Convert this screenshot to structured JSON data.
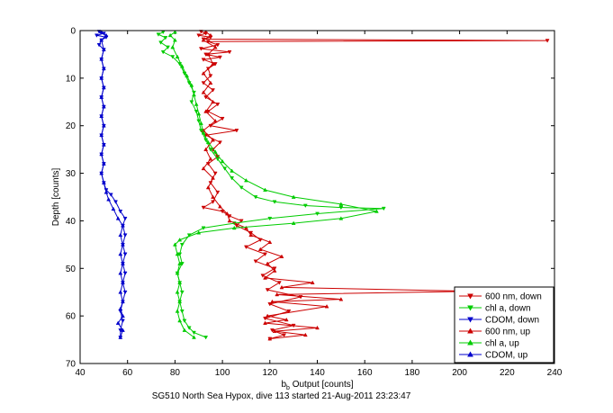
{
  "chart_data": {
    "type": "line",
    "title": "",
    "caption": "SG510 North Sea Hypox, dive 113 started 21-Aug-2011 23:23:47",
    "xlabel_base": "b",
    "xlabel_sub": "b",
    "xlabel_rest": " Output [counts]",
    "ylabel": "Depth [counts]",
    "xlim": [
      40,
      240
    ],
    "ylim": [
      0,
      70
    ],
    "y_reversed": true,
    "grid": false,
    "legend_position": "bottom-right",
    "x_ticks": [
      40,
      60,
      80,
      100,
      120,
      140,
      160,
      180,
      200,
      220,
      240
    ],
    "y_ticks": [
      0,
      10,
      20,
      30,
      40,
      50,
      60,
      70
    ],
    "x_tick_labels": [
      "40",
      "60",
      "80",
      "100",
      "120",
      "140",
      "160",
      "180",
      "200",
      "220",
      "240"
    ],
    "y_tick_labels": [
      "0",
      "10",
      "20",
      "30",
      "40",
      "50",
      "60",
      "70"
    ],
    "series": [
      {
        "name": "600 nm, down",
        "color": "#cc0000",
        "marker": "triangle-down",
        "points": [
          [
            91,
            0.2
          ],
          [
            93,
            0.6
          ],
          [
            90,
            1.0
          ],
          [
            95,
            1.4
          ],
          [
            92,
            1.8
          ],
          [
            237,
            2.1
          ],
          [
            94,
            2.3
          ],
          [
            98,
            3.0
          ],
          [
            91,
            3.8
          ],
          [
            103,
            4.5
          ],
          [
            93,
            5.0
          ],
          [
            99,
            5.6
          ],
          [
            92,
            6.1
          ],
          [
            97,
            7.0
          ],
          [
            94,
            8.0
          ],
          [
            95,
            9.5
          ],
          [
            92,
            11.0
          ],
          [
            96,
            12.5
          ],
          [
            93,
            14.0
          ],
          [
            98,
            15.5
          ],
          [
            94,
            17.0
          ],
          [
            100,
            18.5
          ],
          [
            95,
            20.0
          ],
          [
            106,
            21.0
          ],
          [
            93,
            22.0
          ],
          [
            99,
            23.5
          ],
          [
            96,
            25.0
          ],
          [
            98,
            26.5
          ],
          [
            94,
            28.0
          ],
          [
            97,
            30.0
          ],
          [
            95,
            32.0
          ],
          [
            98,
            34.0
          ],
          [
            96,
            36.0
          ],
          [
            92,
            37.2
          ],
          [
            100,
            38.0
          ],
          [
            103,
            39.0
          ],
          [
            108,
            40.0
          ],
          [
            106,
            41.0
          ],
          [
            112,
            42.5
          ],
          [
            116,
            44.0
          ],
          [
            110,
            45.5
          ],
          [
            118,
            47.0
          ],
          [
            114,
            48.5
          ],
          [
            122,
            50.0
          ],
          [
            117,
            51.5
          ],
          [
            124,
            53.0
          ],
          [
            119,
            54.5
          ],
          [
            133,
            56.0
          ],
          [
            120,
            57.5
          ],
          [
            128,
            59.0
          ],
          [
            118,
            60.5
          ],
          [
            130,
            62.0
          ],
          [
            121,
            63.0
          ],
          [
            126,
            64.0
          ],
          [
            120,
            64.8
          ]
        ]
      },
      {
        "name": "chl a, down",
        "color": "#00cc00",
        "marker": "triangle-down",
        "points": [
          [
            75,
            0.3
          ],
          [
            73,
            0.8
          ],
          [
            76,
            1.5
          ],
          [
            74,
            2.5
          ],
          [
            77,
            3.5
          ],
          [
            75,
            4.5
          ],
          [
            79,
            5.5
          ],
          [
            82,
            7.0
          ],
          [
            84,
            9.0
          ],
          [
            86,
            11.0
          ],
          [
            88,
            13.0
          ],
          [
            87,
            15.0
          ],
          [
            89,
            17.0
          ],
          [
            90,
            19.0
          ],
          [
            91,
            21.0
          ],
          [
            93,
            23.0
          ],
          [
            95,
            25.0
          ],
          [
            98,
            27.0
          ],
          [
            101,
            29.0
          ],
          [
            104,
            31.0
          ],
          [
            108,
            33.0
          ],
          [
            114,
            35.0
          ],
          [
            122,
            36.0
          ],
          [
            135,
            36.8
          ],
          [
            150,
            37.2
          ],
          [
            168,
            37.4
          ],
          [
            140,
            38.5
          ],
          [
            120,
            39.5
          ],
          [
            105,
            40.5
          ],
          [
            92,
            41.5
          ],
          [
            86,
            43.0
          ],
          [
            83,
            45.0
          ],
          [
            82,
            47.0
          ],
          [
            83,
            49.0
          ],
          [
            81,
            51.0
          ],
          [
            82,
            53.0
          ],
          [
            83,
            55.0
          ],
          [
            82,
            57.0
          ],
          [
            83,
            59.0
          ],
          [
            84,
            61.0
          ],
          [
            86,
            62.5
          ],
          [
            88,
            63.5
          ],
          [
            93,
            64.5
          ]
        ]
      },
      {
        "name": "CDOM, down",
        "color": "#0000cc",
        "marker": "triangle-down",
        "points": [
          [
            48,
            0.2
          ],
          [
            50,
            0.6
          ],
          [
            47,
            1.0
          ],
          [
            51,
            1.4
          ],
          [
            49,
            2.0
          ],
          [
            48,
            3.0
          ],
          [
            50,
            4.0
          ],
          [
            49,
            6.0
          ],
          [
            50,
            8.0
          ],
          [
            49,
            10.0
          ],
          [
            50,
            12.0
          ],
          [
            49,
            14.0
          ],
          [
            50,
            16.0
          ],
          [
            49,
            18.0
          ],
          [
            50,
            20.0
          ],
          [
            49,
            22.0
          ],
          [
            50,
            24.0
          ],
          [
            49,
            26.0
          ],
          [
            50,
            28.0
          ],
          [
            49,
            30.0
          ],
          [
            50,
            32.0
          ],
          [
            51,
            33.5
          ],
          [
            53,
            34.5
          ],
          [
            55,
            36.0
          ],
          [
            57,
            38.0
          ],
          [
            59,
            39.5
          ],
          [
            58,
            41.0
          ],
          [
            59,
            43.0
          ],
          [
            58,
            45.0
          ],
          [
            59,
            47.0
          ],
          [
            58,
            49.0
          ],
          [
            59,
            51.0
          ],
          [
            58,
            53.0
          ],
          [
            59,
            55.0
          ],
          [
            58,
            57.0
          ],
          [
            57,
            59.0
          ],
          [
            58,
            61.0
          ],
          [
            57,
            63.0
          ],
          [
            57,
            64.5
          ]
        ]
      },
      {
        "name": "600 nm, up",
        "color": "#cc0000",
        "marker": "triangle-up",
        "points": [
          [
            120,
            64.8
          ],
          [
            135,
            64.0
          ],
          [
            122,
            63.2
          ],
          [
            140,
            62.5
          ],
          [
            118,
            61.5
          ],
          [
            127,
            60.8
          ],
          [
            119,
            60.0
          ],
          [
            144,
            58.0
          ],
          [
            121,
            57.0
          ],
          [
            150,
            56.5
          ],
          [
            123,
            55.5
          ],
          [
            205,
            54.8
          ],
          [
            125,
            54.0
          ],
          [
            138,
            53.0
          ],
          [
            118,
            52.0
          ],
          [
            122,
            50.5
          ],
          [
            119,
            49.0
          ],
          [
            125,
            47.5
          ],
          [
            116,
            46.0
          ],
          [
            120,
            44.5
          ],
          [
            112,
            43.0
          ],
          [
            110,
            41.5
          ],
          [
            103,
            40.0
          ],
          [
            102,
            38.5
          ],
          [
            99,
            37.0
          ],
          [
            96,
            35.0
          ],
          [
            94,
            33.0
          ],
          [
            96,
            31.0
          ],
          [
            92,
            29.0
          ],
          [
            95,
            27.0
          ],
          [
            93,
            25.0
          ],
          [
            96,
            23.0
          ],
          [
            92,
            21.0
          ],
          [
            97,
            19.0
          ],
          [
            93,
            17.0
          ],
          [
            96,
            15.0
          ],
          [
            92,
            13.0
          ],
          [
            95,
            11.0
          ],
          [
            92,
            9.0
          ],
          [
            96,
            7.0
          ],
          [
            94,
            5.0
          ],
          [
            97,
            3.5
          ],
          [
            92,
            2.0
          ],
          [
            95,
            1.0
          ],
          [
            93,
            0.3
          ]
        ]
      },
      {
        "name": "chl a, up",
        "color": "#00cc00",
        "marker": "triangle-up",
        "points": [
          [
            88,
            64.5
          ],
          [
            84,
            63.0
          ],
          [
            82,
            61.0
          ],
          [
            81,
            59.0
          ],
          [
            82,
            57.0
          ],
          [
            81,
            55.0
          ],
          [
            82,
            53.0
          ],
          [
            81,
            51.0
          ],
          [
            82,
            49.0
          ],
          [
            81,
            47.0
          ],
          [
            80,
            45.0
          ],
          [
            82,
            44.0
          ],
          [
            90,
            42.5
          ],
          [
            105,
            41.5
          ],
          [
            130,
            40.5
          ],
          [
            150,
            39.5
          ],
          [
            165,
            38.0
          ],
          [
            150,
            36.5
          ],
          [
            130,
            35.0
          ],
          [
            118,
            33.5
          ],
          [
            110,
            31.5
          ],
          [
            104,
            29.5
          ],
          [
            100,
            27.5
          ],
          [
            97,
            25.5
          ],
          [
            94,
            23.5
          ],
          [
            92,
            21.5
          ],
          [
            91,
            19.5
          ],
          [
            90,
            17.5
          ],
          [
            89,
            15.5
          ],
          [
            88,
            13.5
          ],
          [
            87,
            11.5
          ],
          [
            85,
            9.5
          ],
          [
            83,
            7.5
          ],
          [
            81,
            5.5
          ],
          [
            79,
            3.5
          ],
          [
            80,
            2.0
          ],
          [
            78,
            1.0
          ],
          [
            80,
            0.3
          ]
        ]
      },
      {
        "name": "CDOM, up",
        "color": "#0000cc",
        "marker": "triangle-up",
        "points": [
          [
            57,
            64.5
          ],
          [
            58,
            63.0
          ],
          [
            56,
            61.5
          ],
          [
            58,
            60.0
          ],
          [
            57,
            58.5
          ],
          [
            58,
            57.0
          ],
          [
            57,
            55.0
          ],
          [
            58,
            53.0
          ],
          [
            57,
            51.0
          ],
          [
            58,
            49.0
          ],
          [
            57,
            47.0
          ],
          [
            58,
            45.0
          ],
          [
            57,
            43.0
          ],
          [
            58,
            41.0
          ],
          [
            56,
            39.5
          ],
          [
            54,
            37.5
          ],
          [
            52,
            35.5
          ],
          [
            51,
            34.0
          ],
          [
            50,
            32.0
          ],
          [
            49,
            30.0
          ],
          [
            50,
            28.0
          ],
          [
            49,
            26.0
          ],
          [
            50,
            24.0
          ],
          [
            49,
            22.0
          ],
          [
            50,
            20.0
          ],
          [
            49,
            18.0
          ],
          [
            50,
            16.0
          ],
          [
            49,
            14.0
          ],
          [
            50,
            12.0
          ],
          [
            49,
            10.0
          ],
          [
            50,
            8.0
          ],
          [
            49,
            6.0
          ],
          [
            50,
            4.0
          ],
          [
            49,
            2.0
          ],
          [
            51,
            1.0
          ],
          [
            49,
            0.3
          ]
        ]
      }
    ]
  }
}
